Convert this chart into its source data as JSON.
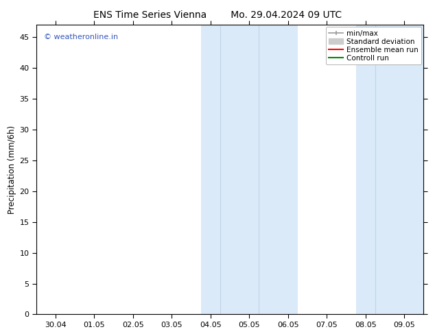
{
  "title_left": "ENS Time Series Vienna",
  "title_right": "Mo. 29.04.2024 09 UTC",
  "ylabel": "Precipitation (mm/6h)",
  "xlabel": "",
  "ylim": [
    0,
    47
  ],
  "yticks": [
    0,
    5,
    10,
    15,
    20,
    25,
    30,
    35,
    40,
    45
  ],
  "xtick_labels": [
    "30.04",
    "01.05",
    "02.05",
    "03.05",
    "04.05",
    "05.05",
    "06.05",
    "07.05",
    "08.05",
    "09.05"
  ],
  "xtick_positions": [
    0,
    1,
    2,
    3,
    4,
    5,
    6,
    7,
    8,
    9
  ],
  "xlim_min": -0.5,
  "xlim_max": 9.5,
  "shaded_regions": [
    {
      "x_start": 3.75,
      "x_end": 4.25,
      "color": "#d8eaf8"
    },
    {
      "x_start": 4.25,
      "x_end": 5.75,
      "color": "#d8eaf8"
    },
    {
      "x_start": 5.75,
      "x_end": 6.25,
      "color": "#d8eaf8"
    },
    {
      "x_start": 7.75,
      "x_end": 8.25,
      "color": "#d8eaf8"
    },
    {
      "x_start": 8.25,
      "x_end": 8.75,
      "color": "#d8eaf8"
    },
    {
      "x_start": 8.75,
      "x_end": 9.25,
      "color": "#d8eaf8"
    }
  ],
  "band1_x_start": 3.75,
  "band1_x_end": 6.25,
  "band2_x_start": 7.75,
  "band2_x_end": 9.5,
  "band_color": "#daeaf8",
  "band_edge_color": "#b8d4ee",
  "watermark_text": "© weatheronline.in",
  "watermark_color": "#3355bb",
  "background_color": "#ffffff",
  "plot_bg_color": "#ffffff",
  "title_fontsize": 10,
  "tick_fontsize": 8,
  "ylabel_fontsize": 8.5,
  "legend_fontsize": 7.5,
  "minmax_color": "#999999",
  "std_color": "#cccccc",
  "ensemble_color": "#ff0000",
  "control_color": "#008800"
}
